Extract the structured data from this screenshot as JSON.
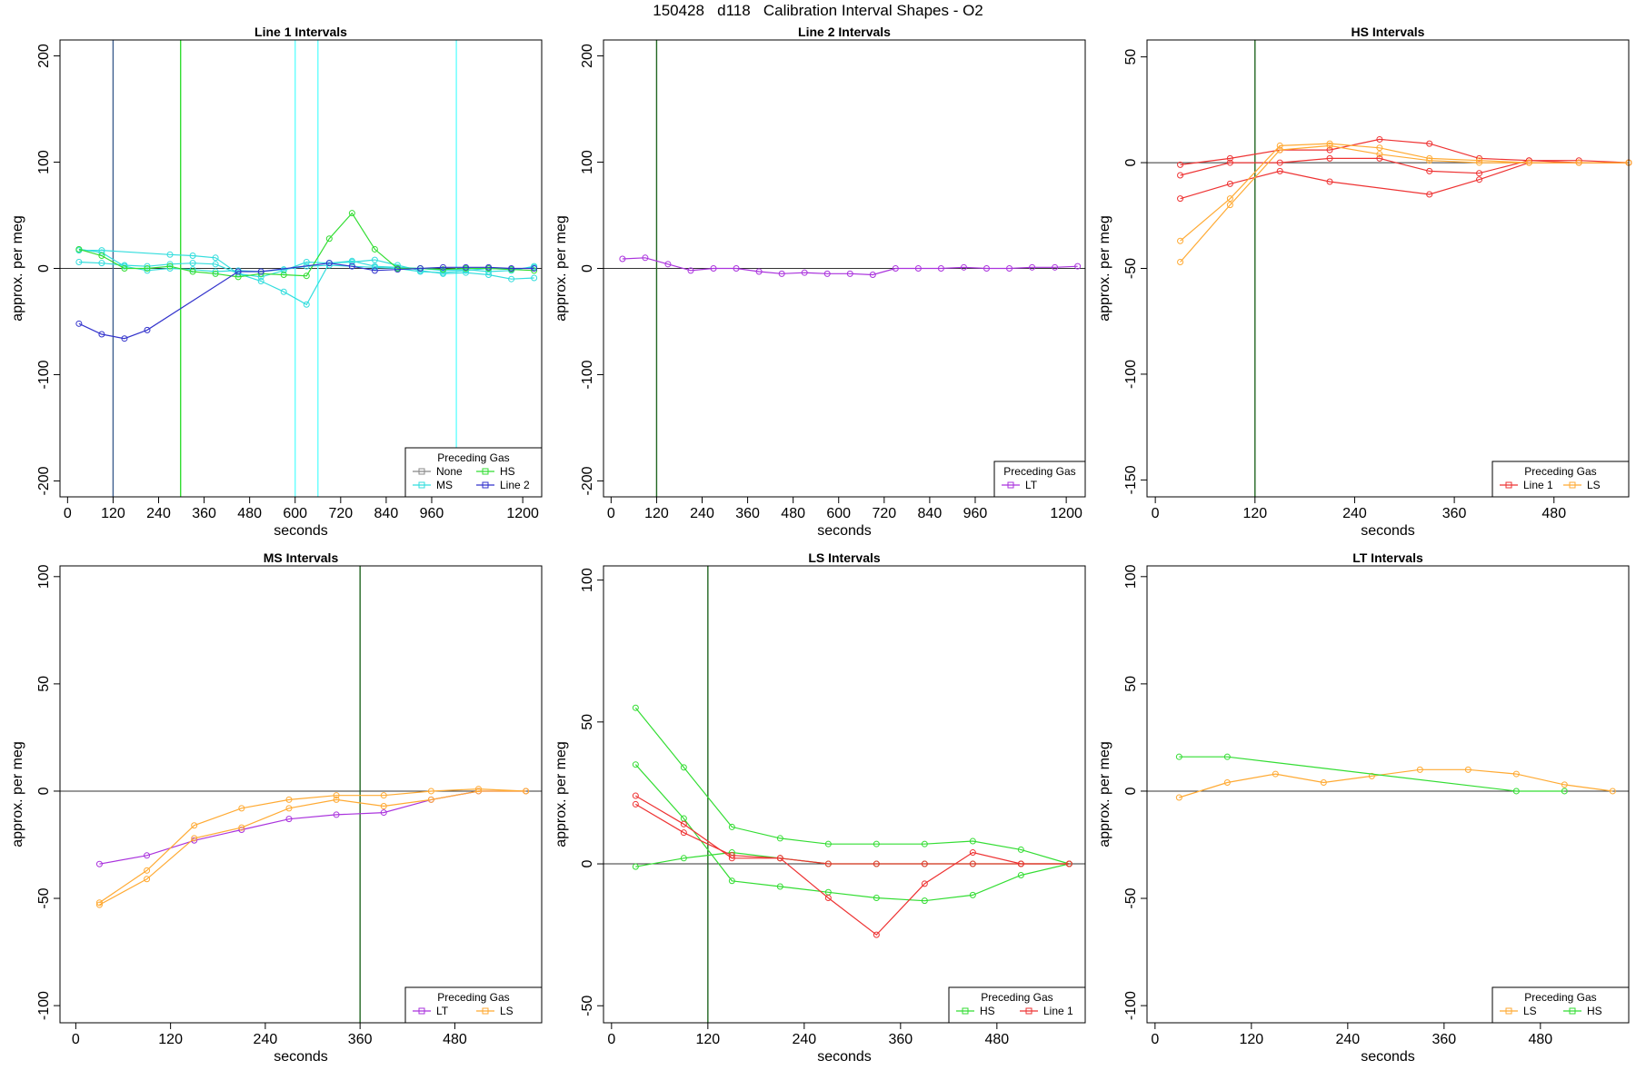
{
  "page": {
    "title": "150428   d118   Calibration Interval Shapes - O2"
  },
  "chart_data": [
    {
      "type": "line",
      "title": "Line 1 Intervals",
      "xlabel": "seconds",
      "ylabel": "approx. per meg",
      "xlim": [
        -20,
        1250
      ],
      "ylim": [
        -215,
        215
      ],
      "xticks": [
        0,
        120,
        240,
        360,
        480,
        600,
        720,
        840,
        960,
        1200
      ],
      "yticks": [
        -200,
        -100,
        0,
        100,
        200
      ],
      "vlines": [
        {
          "x": 120,
          "color": "#3f5f8f"
        },
        {
          "x": 298,
          "color": "#33dd33"
        },
        {
          "x": 600,
          "color": "#66ffff"
        },
        {
          "x": 660,
          "color": "#66ffff"
        },
        {
          "x": 1025,
          "color": "#66ffff"
        }
      ],
      "legend": {
        "title": "Preceding Gas",
        "position": "bottom-right",
        "columns": 2,
        "entries": [
          {
            "label": "None",
            "color": "#888888"
          },
          {
            "label": "HS",
            "color": "#33dd33"
          },
          {
            "label": "MS",
            "color": "#33dddd"
          },
          {
            "label": "Line 2",
            "color": "#3333cc"
          }
        ]
      },
      "series": [
        {
          "color": "#33dddd",
          "x": [
            30,
            90,
            270,
            330,
            390,
            450,
            510,
            570,
            630,
            690,
            750,
            810,
            870,
            930,
            990,
            1050,
            1110,
            1170,
            1230
          ],
          "y": [
            17,
            17,
            13,
            12,
            10,
            -5,
            -12,
            -22,
            -34,
            5,
            6,
            8,
            3,
            -2,
            -5,
            -4,
            -6,
            -10,
            -9
          ]
        },
        {
          "color": "#33dddd",
          "x": [
            30,
            90,
            150,
            210,
            270,
            330,
            390,
            450,
            510,
            570,
            630,
            690,
            750,
            810,
            870,
            930,
            990,
            1050,
            1110,
            1170,
            1230
          ],
          "y": [
            6,
            5,
            3,
            2,
            4,
            5,
            4,
            -5,
            -8,
            -2,
            6,
            5,
            7,
            2,
            1,
            0,
            -2,
            -1,
            -3,
            -2,
            2
          ]
        },
        {
          "color": "#33dddd",
          "x": [
            30,
            90,
            150,
            210,
            270,
            330,
            390,
            450,
            510,
            570,
            630,
            690,
            750,
            810,
            870,
            930,
            990,
            1050,
            1110,
            1170,
            1230
          ],
          "y": [
            18,
            15,
            2,
            -2,
            0,
            -1,
            -3,
            -2,
            -3,
            -1,
            2,
            3,
            2,
            1,
            0,
            -3,
            -4,
            -2,
            0,
            -1,
            1
          ]
        },
        {
          "color": "#33dd33",
          "x": [
            30,
            90,
            150,
            210,
            270,
            330,
            390,
            450,
            510,
            570,
            630,
            690,
            750,
            810,
            870,
            930,
            990,
            1050,
            1110,
            1170,
            1230
          ],
          "y": [
            18,
            12,
            0,
            0,
            2,
            -3,
            -5,
            -8,
            -5,
            -6,
            -7,
            28,
            52,
            18,
            0,
            0,
            -1,
            0,
            0,
            -1,
            -2
          ]
        },
        {
          "color": "#3333cc",
          "x": [
            30,
            90,
            150,
            210,
            450,
            510,
            690,
            750,
            810,
            870,
            930,
            990,
            1050,
            1110,
            1170,
            1230
          ],
          "y": [
            -52,
            -62,
            -66,
            -58,
            -3,
            -3,
            5,
            2,
            -2,
            -1,
            0,
            1,
            1,
            1,
            0,
            0
          ]
        }
      ]
    },
    {
      "type": "line",
      "title": "Line 2 Intervals",
      "xlabel": "seconds",
      "ylabel": "approx. per meg",
      "xlim": [
        -20,
        1250
      ],
      "ylim": [
        -215,
        215
      ],
      "xticks": [
        0,
        120,
        240,
        360,
        480,
        600,
        720,
        840,
        960,
        1200
      ],
      "yticks": [
        -200,
        -100,
        0,
        100,
        200
      ],
      "vlines": [
        {
          "x": 120,
          "color": "#226622"
        }
      ],
      "legend": {
        "title": "Preceding Gas",
        "position": "bottom-right",
        "columns": 1,
        "entries": [
          {
            "label": "LT",
            "color": "#aa33dd"
          }
        ]
      },
      "series": [
        {
          "color": "#aa33dd",
          "x": [
            30,
            90,
            150,
            210,
            270,
            330,
            390,
            450,
            510,
            570,
            630,
            690,
            750,
            810,
            870,
            930,
            990,
            1050,
            1110,
            1170,
            1230
          ],
          "y": [
            9,
            10,
            4,
            -2,
            0,
            0,
            -3,
            -5,
            -4,
            -5,
            -5,
            -6,
            0,
            0,
            0,
            1,
            0,
            0,
            1,
            1,
            2
          ]
        }
      ]
    },
    {
      "type": "line",
      "title": "HS Intervals",
      "xlabel": "seconds",
      "ylabel": "approx. per meg",
      "xlim": [
        -10,
        570
      ],
      "ylim": [
        -158,
        58
      ],
      "xticks": [
        0,
        120,
        240,
        360,
        480
      ],
      "yticks": [
        -150,
        -100,
        -50,
        0,
        50
      ],
      "vlines": [
        {
          "x": 120,
          "color": "#226622"
        }
      ],
      "legend": {
        "title": "Preceding Gas",
        "position": "bottom-right",
        "columns": 2,
        "entries": [
          {
            "label": "Line 1",
            "color": "#ee3333"
          },
          {
            "label": "LS",
            "color": "#ffaa33"
          }
        ]
      },
      "series": [
        {
          "color": "#ee3333",
          "x": [
            30,
            90,
            150,
            210,
            270,
            330,
            390,
            450,
            510,
            570
          ],
          "y": [
            -1,
            2,
            6,
            6,
            11,
            9,
            2,
            1,
            1,
            0
          ]
        },
        {
          "color": "#ee3333",
          "x": [
            30,
            90,
            150,
            210,
            270,
            330,
            390,
            450,
            510,
            570
          ],
          "y": [
            -6,
            0,
            0,
            2,
            2,
            -4,
            -5,
            1,
            0,
            0
          ]
        },
        {
          "color": "#ee3333",
          "x": [
            30,
            90,
            150,
            210,
            330,
            390,
            450,
            510,
            570
          ],
          "y": [
            -17,
            -10,
            -4,
            -9,
            -15,
            -8,
            0,
            0,
            0
          ]
        },
        {
          "color": "#ffaa33",
          "x": [
            30,
            90,
            150,
            210,
            270,
            330,
            390,
            450,
            510,
            570
          ],
          "y": [
            -37,
            -17,
            8,
            9,
            7,
            2,
            1,
            0,
            0,
            0
          ]
        },
        {
          "color": "#ffaa33",
          "x": [
            30,
            90,
            150,
            210,
            270,
            330,
            390,
            450,
            510,
            570
          ],
          "y": [
            -47,
            -20,
            6,
            8,
            4,
            1,
            0,
            0,
            0,
            0
          ]
        }
      ]
    },
    {
      "type": "line",
      "title": "MS Intervals",
      "xlabel": "seconds",
      "ylabel": "approx. per meg",
      "xlim": [
        -20,
        590
      ],
      "ylim": [
        -108,
        105
      ],
      "xticks": [
        0,
        120,
        240,
        360,
        480
      ],
      "yticks": [
        -100,
        -50,
        0,
        50,
        100
      ],
      "vlines": [
        {
          "x": 360,
          "color": "#226622"
        }
      ],
      "legend": {
        "title": "Preceding Gas",
        "position": "bottom-right",
        "columns": 2,
        "entries": [
          {
            "label": "LT",
            "color": "#aa33dd"
          },
          {
            "label": "LS",
            "color": "#ffaa33"
          }
        ]
      },
      "series": [
        {
          "color": "#aa33dd",
          "x": [
            30,
            90,
            150,
            210,
            270,
            330,
            390,
            450,
            510,
            570
          ],
          "y": [
            -34,
            -30,
            -23,
            -18,
            -13,
            -11,
            -10,
            -4,
            0,
            0
          ]
        },
        {
          "color": "#ffaa33",
          "x": [
            30,
            90,
            150,
            210,
            270,
            330,
            390,
            450,
            510,
            570
          ],
          "y": [
            -52,
            -37,
            -16,
            -8,
            -4,
            -2,
            -2,
            0,
            1,
            0
          ]
        },
        {
          "color": "#ffaa33",
          "x": [
            30,
            90,
            150,
            210,
            270,
            330,
            390,
            450,
            510,
            570
          ],
          "y": [
            -53,
            -41,
            -22,
            -17,
            -8,
            -4,
            -7,
            -4,
            0,
            0
          ]
        }
      ]
    },
    {
      "type": "line",
      "title": "LS Intervals",
      "xlabel": "seconds",
      "ylabel": "approx. per meg",
      "xlim": [
        -10,
        590
      ],
      "ylim": [
        -56,
        105
      ],
      "xticks": [
        0,
        120,
        240,
        360,
        480
      ],
      "yticks": [
        -50,
        0,
        50,
        100
      ],
      "vlines": [
        {
          "x": 120,
          "color": "#226622"
        }
      ],
      "legend": {
        "title": "Preceding Gas",
        "position": "bottom-right",
        "columns": 2,
        "entries": [
          {
            "label": "HS",
            "color": "#33dd33"
          },
          {
            "label": "Line 1",
            "color": "#ee3333"
          }
        ]
      },
      "series": [
        {
          "color": "#33dd33",
          "x": [
            30,
            90,
            150,
            210,
            270,
            330,
            390,
            450,
            510,
            570
          ],
          "y": [
            55,
            34,
            13,
            9,
            7,
            7,
            7,
            8,
            5,
            0
          ]
        },
        {
          "color": "#33dd33",
          "x": [
            30,
            90,
            150,
            210,
            270,
            330,
            390,
            450,
            510,
            570
          ],
          "y": [
            35,
            16,
            -6,
            -8,
            -10,
            -12,
            -13,
            -11,
            -4,
            0
          ]
        },
        {
          "color": "#33dd33",
          "x": [
            30,
            90,
            150,
            210,
            270,
            330,
            390,
            450,
            510,
            570
          ],
          "y": [
            -1,
            2,
            4,
            2,
            0,
            0,
            0,
            0,
            0,
            0
          ]
        },
        {
          "color": "#ee3333",
          "x": [
            30,
            90,
            150,
            210,
            270,
            330,
            390,
            450,
            510,
            570
          ],
          "y": [
            24,
            14,
            2,
            2,
            -12,
            -25,
            -7,
            4,
            0,
            0
          ]
        },
        {
          "color": "#ee3333",
          "x": [
            30,
            90,
            150,
            210,
            270,
            330,
            390,
            450,
            510,
            570
          ],
          "y": [
            21,
            11,
            3,
            2,
            0,
            0,
            0,
            0,
            0,
            0
          ]
        }
      ]
    },
    {
      "type": "line",
      "title": "LT Intervals",
      "xlabel": "seconds",
      "ylabel": "approx. per meg",
      "xlim": [
        -10,
        590
      ],
      "ylim": [
        -108,
        105
      ],
      "xticks": [
        0,
        120,
        240,
        360,
        480
      ],
      "yticks": [
        -100,
        -50,
        0,
        50,
        100
      ],
      "vlines": [],
      "legend": {
        "title": "Preceding Gas",
        "position": "bottom-right",
        "columns": 2,
        "entries": [
          {
            "label": "LS",
            "color": "#ffaa33"
          },
          {
            "label": "HS",
            "color": "#33dd33"
          }
        ]
      },
      "series": [
        {
          "color": "#ffaa33",
          "x": [
            30,
            90,
            150,
            210,
            270,
            330,
            390,
            450,
            510,
            570
          ],
          "y": [
            -3,
            4,
            8,
            4,
            7,
            10,
            10,
            8,
            3,
            0
          ]
        },
        {
          "color": "#33dd33",
          "x": [
            30,
            90,
            450,
            510
          ],
          "y": [
            16,
            16,
            0,
            0
          ]
        }
      ]
    }
  ]
}
